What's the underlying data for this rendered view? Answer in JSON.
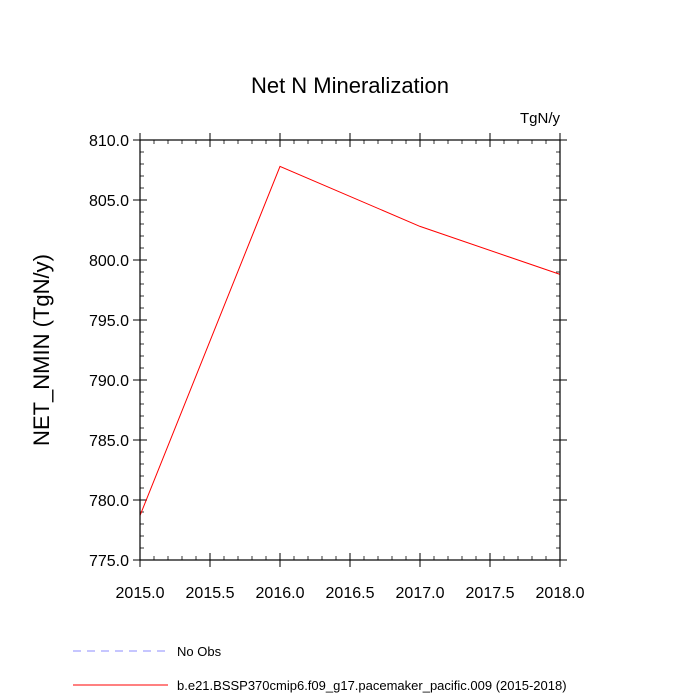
{
  "chart_data": {
    "type": "line",
    "title": "Net N Mineralization",
    "units_label": "TgN/y",
    "xlabel": "",
    "ylabel": "NET_NMIN  (TgN/y)",
    "xlim": [
      2015.0,
      2018.0
    ],
    "ylim": [
      775.0,
      810.0
    ],
    "x_ticks": [
      2015.0,
      2015.5,
      2016.0,
      2016.5,
      2017.0,
      2017.5,
      2018.0
    ],
    "x_tick_labels": [
      "2015.0",
      "2015.5",
      "2016.0",
      "2016.5",
      "2017.0",
      "2017.5",
      "2018.0"
    ],
    "y_ticks": [
      775.0,
      780.0,
      785.0,
      790.0,
      795.0,
      800.0,
      805.0,
      810.0
    ],
    "y_tick_labels": [
      "775.0",
      "780.0",
      "785.0",
      "790.0",
      "795.0",
      "800.0",
      "805.0",
      "810.0"
    ],
    "grid": false,
    "series": [
      {
        "name": "b.e21.BSSP370cmip6.f09_g17.pacemaker_pacific.009 (2015-2018)",
        "color": "#ff0000",
        "dash": "solid",
        "x": [
          2015.0,
          2016.0,
          2017.0,
          2018.0
        ],
        "values": [
          778.7,
          807.8,
          802.8,
          798.8
        ]
      }
    ],
    "legend": [
      {
        "label": "No Obs",
        "color": "#8c8cff",
        "dash": "dashed"
      },
      {
        "label": "b.e21.BSSP370cmip6.f09_g17.pacemaker_pacific.009 (2015-2018)",
        "color": "#ff0000",
        "dash": "solid"
      }
    ],
    "legend_position": "bottom-left"
  }
}
